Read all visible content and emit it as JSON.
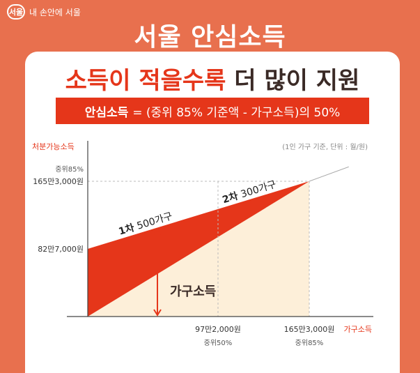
{
  "brand": {
    "logo_text": "서울",
    "label": "내 손안에 서울"
  },
  "title": "서울 안심소득",
  "headline": {
    "part1": "소득이 적을수록",
    "part2": "더 많이 지원"
  },
  "formula": {
    "label": "안심소득",
    "text": "= (중위 85% 기준액 - 가구소득)의 50%"
  },
  "chart_data": {
    "type": "area",
    "ylabel": "처분가능소득",
    "xlabel": "가구소득",
    "unit_note": "(1인 가구 기준, 단위 : 월/원)",
    "y_ticks": [
      {
        "value": 1653000,
        "label": "165만3,000원",
        "sublabel": "중위85%"
      },
      {
        "value": 827000,
        "label": "82만7,000원",
        "sublabel": ""
      }
    ],
    "x_ticks": [
      {
        "value": 972000,
        "label": "97만2,000원",
        "sublabel": "중위50%"
      },
      {
        "value": 1653000,
        "label": "165만3,000원",
        "sublabel": "중위85%"
      }
    ],
    "regions": [
      {
        "name": "안심소득",
        "color": "#E5361A"
      },
      {
        "name": "가구소득",
        "color": "#FDEFD9"
      }
    ],
    "annotations": [
      {
        "bold": "1차",
        "text": "500가구",
        "at_x": 0
      },
      {
        "bold": "2차",
        "text": "300가구",
        "at_x": 972000
      }
    ],
    "line_points": [
      {
        "x": 0,
        "y": 827000
      },
      {
        "x": 1653000,
        "y": 1653000
      },
      {
        "x": 2000000,
        "y": 2000000
      }
    ]
  }
}
